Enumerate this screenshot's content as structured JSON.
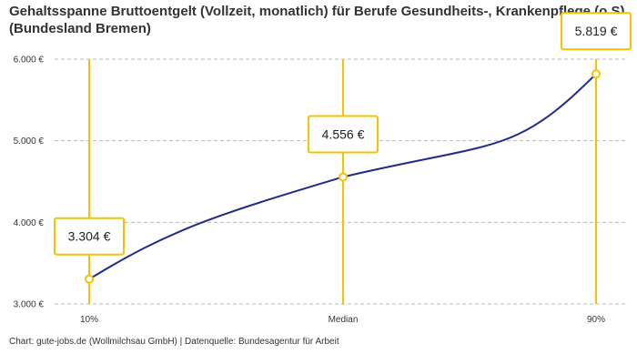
{
  "chart_data": {
    "type": "line",
    "title": "Gehaltsspanne Bruttoentgelt (Vollzeit, monatlich) für Berufe Gesundheits-, Krankenpflege (o.S) (Bundesland Bremen)",
    "categories": [
      "10%",
      "Median",
      "90%"
    ],
    "values": [
      3304,
      4556,
      5819
    ],
    "value_labels": [
      "3.304 €",
      "4.556 €",
      "5.819 €"
    ],
    "y_ticks": [
      3000,
      4000,
      5000,
      6000
    ],
    "y_tick_labels": [
      "3.000 €",
      "4.000 €",
      "5.000 €",
      "6.000 €"
    ],
    "ylim": [
      3000,
      6000
    ],
    "grid": true,
    "colors": {
      "line": "#1f2d86",
      "accent": "#f5c400",
      "grid": "#bbbbbb"
    }
  },
  "footer": "Chart: gute-jobs.de (Wollmilchsau GmbH) | Datenquelle: Bundesagentur für Arbeit"
}
